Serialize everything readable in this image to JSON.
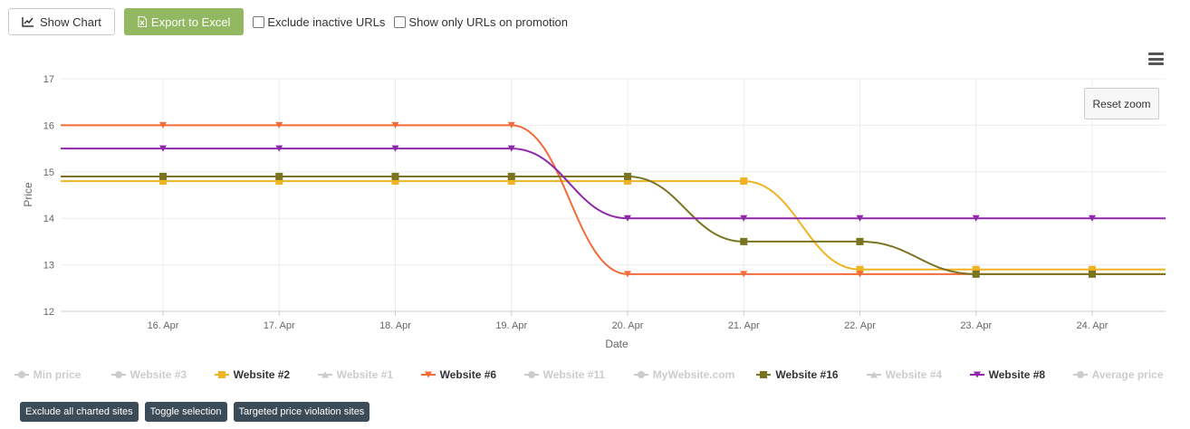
{
  "toolbar": {
    "show_chart_label": "Show Chart",
    "export_label": "Export to Excel",
    "exclude_inactive_label": "Exclude inactive URLs",
    "promotion_only_label": "Show only URLs on promotion"
  },
  "chart_controls": {
    "reset_zoom_label": "Reset zoom"
  },
  "bottom_buttons": {
    "exclude_all": "Exclude all charted sites",
    "toggle_selection": "Toggle selection",
    "targeted": "Targeted price violation sites"
  },
  "colors": {
    "export_button": "#92b962",
    "dark_button": "#3b4b57",
    "website_2": "#f0b323",
    "website_6": "#f26b38",
    "website_16": "#7a7320",
    "website_8": "#8e27a8",
    "legend_inactive": "#cccccc"
  },
  "chart_data": {
    "type": "line",
    "xlabel": "Date",
    "ylabel": "Price",
    "ylim": [
      12,
      17
    ],
    "yticks": [
      "12",
      "13",
      "14",
      "15",
      "16",
      "17"
    ],
    "categories": [
      "16. Apr",
      "17. Apr",
      "18. Apr",
      "19. Apr",
      "20. Apr",
      "21. Apr",
      "22. Apr",
      "23. Apr",
      "24. Apr"
    ],
    "grid": true,
    "legend_position": "bottom",
    "legend": [
      {
        "name": "Min price",
        "visible": false,
        "symbol": "circle"
      },
      {
        "name": "Website #3",
        "visible": false,
        "symbol": "circle"
      },
      {
        "name": "Website #2",
        "visible": true,
        "symbol": "square",
        "color": "#f0b323"
      },
      {
        "name": "Website #1",
        "visible": false,
        "symbol": "triangle"
      },
      {
        "name": "Website #6",
        "visible": true,
        "symbol": "triangle-down",
        "color": "#f26b38"
      },
      {
        "name": "Website #11",
        "visible": false,
        "symbol": "circle"
      },
      {
        "name": "MyWebsite.com",
        "visible": false,
        "symbol": "circle"
      },
      {
        "name": "Website #16",
        "visible": true,
        "symbol": "square",
        "color": "#7a7320"
      },
      {
        "name": "Website #4",
        "visible": false,
        "symbol": "triangle"
      },
      {
        "name": "Website #8",
        "visible": true,
        "symbol": "triangle-down",
        "color": "#8e27a8"
      },
      {
        "name": "Average price",
        "visible": false,
        "symbol": "circle"
      }
    ],
    "series": [
      {
        "name": "Website #2",
        "color": "#f0b323",
        "symbol": "square",
        "values": [
          14.8,
          14.8,
          14.8,
          14.8,
          14.8,
          14.8,
          12.9,
          12.9,
          12.9
        ]
      },
      {
        "name": "Website #6",
        "color": "#f26b38",
        "symbol": "triangle-down",
        "values": [
          16.0,
          16.0,
          16.0,
          16.0,
          12.8,
          12.8,
          12.8,
          12.8,
          12.8
        ]
      },
      {
        "name": "Website #16",
        "color": "#7a7320",
        "symbol": "square",
        "values": [
          14.9,
          14.9,
          14.9,
          14.9,
          14.9,
          13.5,
          13.5,
          12.8,
          12.8
        ]
      },
      {
        "name": "Website #8",
        "color": "#8e27a8",
        "symbol": "triangle-down",
        "values": [
          15.5,
          15.5,
          15.5,
          15.5,
          14.0,
          14.0,
          14.0,
          14.0,
          14.0
        ]
      }
    ]
  }
}
